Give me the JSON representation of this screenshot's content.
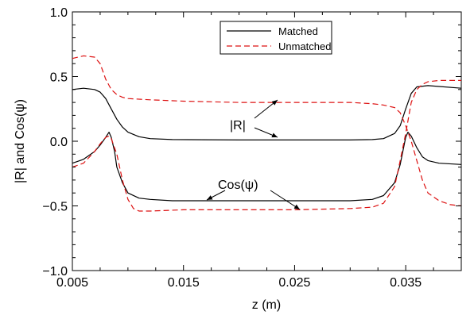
{
  "chart_data": {
    "type": "line",
    "xlabel": "z (m)",
    "ylabel": "|R| and Cos(ψ)",
    "xlim": [
      0.005,
      0.04
    ],
    "ylim": [
      -1.0,
      1.0
    ],
    "xticks": [
      0.005,
      0.015,
      0.025,
      0.035
    ],
    "xtick_labels": [
      "0.005",
      "0.015",
      "0.025",
      "0.035"
    ],
    "yticks": [
      -1.0,
      -0.5,
      0.0,
      0.5,
      1.0
    ],
    "ytick_labels": [
      "−1.0",
      "−0.5",
      "0.0",
      "0.5",
      "1.0"
    ],
    "grid": false,
    "legend_position": "top-center",
    "series": [
      {
        "name": "Matched",
        "quantity": "|R|",
        "color": "#000000",
        "dash": "solid",
        "x": [
          0.005,
          0.006,
          0.007,
          0.0075,
          0.008,
          0.0085,
          0.009,
          0.0095,
          0.01,
          0.011,
          0.012,
          0.014,
          0.02,
          0.03,
          0.032,
          0.033,
          0.034,
          0.0345,
          0.035,
          0.0355,
          0.036,
          0.037,
          0.04
        ],
        "y": [
          0.4,
          0.41,
          0.4,
          0.38,
          0.33,
          0.25,
          0.17,
          0.11,
          0.07,
          0.035,
          0.02,
          0.013,
          0.01,
          0.01,
          0.013,
          0.02,
          0.06,
          0.12,
          0.25,
          0.37,
          0.42,
          0.43,
          0.41
        ]
      },
      {
        "name": "Matched",
        "quantity": "Cos(ψ)",
        "color": "#000000",
        "dash": "solid",
        "x": [
          0.005,
          0.006,
          0.007,
          0.0075,
          0.008,
          0.0083,
          0.0085,
          0.0088,
          0.009,
          0.0095,
          0.01,
          0.011,
          0.012,
          0.014,
          0.02,
          0.03,
          0.032,
          0.033,
          0.034,
          0.0345,
          0.035,
          0.0352,
          0.0355,
          0.036,
          0.0365,
          0.037,
          0.038,
          0.04
        ],
        "y": [
          -0.17,
          -0.14,
          -0.08,
          -0.03,
          0.03,
          0.07,
          0.03,
          -0.08,
          -0.2,
          -0.32,
          -0.4,
          -0.44,
          -0.45,
          -0.46,
          -0.46,
          -0.46,
          -0.45,
          -0.42,
          -0.32,
          -0.18,
          0.03,
          0.07,
          0.04,
          -0.05,
          -0.12,
          -0.15,
          -0.17,
          -0.18
        ]
      },
      {
        "name": "Unmatched",
        "quantity": "|R|",
        "color": "#dd1111",
        "dash": "dashed",
        "x": [
          0.005,
          0.006,
          0.007,
          0.0075,
          0.008,
          0.0085,
          0.009,
          0.0095,
          0.01,
          0.012,
          0.015,
          0.02,
          0.025,
          0.03,
          0.032,
          0.033,
          0.034,
          0.0345,
          0.035,
          0.0355,
          0.036,
          0.0365,
          0.037,
          0.038,
          0.039,
          0.04
        ],
        "y": [
          0.64,
          0.66,
          0.65,
          0.6,
          0.48,
          0.4,
          0.36,
          0.34,
          0.33,
          0.32,
          0.31,
          0.3,
          0.3,
          0.3,
          0.29,
          0.28,
          0.26,
          0.22,
          0.12,
          0.0,
          -0.15,
          -0.3,
          -0.4,
          -0.46,
          -0.49,
          -0.5
        ]
      },
      {
        "name": "Unmatched",
        "quantity": "Cos(ψ)",
        "color": "#dd1111",
        "dash": "dashed",
        "x": [
          0.005,
          0.006,
          0.007,
          0.0075,
          0.008,
          0.0083,
          0.0085,
          0.009,
          0.0095,
          0.01,
          0.0105,
          0.011,
          0.012,
          0.015,
          0.02,
          0.025,
          0.03,
          0.032,
          0.033,
          0.034,
          0.0345,
          0.035,
          0.0355,
          0.036,
          0.0365,
          0.037,
          0.038,
          0.039,
          0.04
        ],
        "y": [
          -0.2,
          -0.17,
          -0.08,
          -0.02,
          0.03,
          0.04,
          0.02,
          -0.1,
          -0.3,
          -0.45,
          -0.52,
          -0.54,
          -0.54,
          -0.53,
          -0.53,
          -0.53,
          -0.52,
          -0.51,
          -0.48,
          -0.35,
          -0.15,
          0.06,
          0.3,
          0.4,
          0.44,
          0.46,
          0.47,
          0.47,
          0.47
        ]
      }
    ],
    "annotations": [
      {
        "text": "|R|"
      },
      {
        "text": "Cos(ψ)"
      }
    ]
  }
}
